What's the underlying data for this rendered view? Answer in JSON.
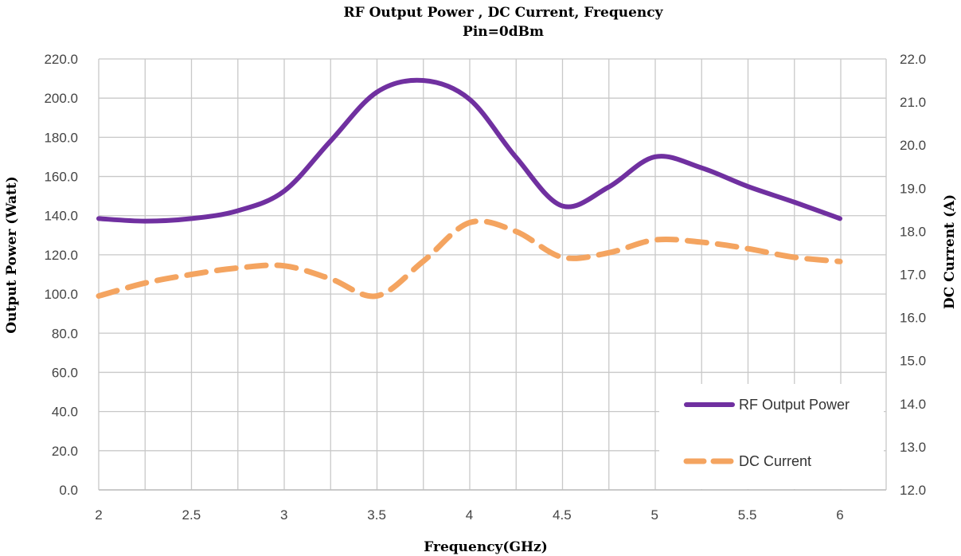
{
  "chart_data": {
    "type": "line",
    "title": "RF Output Power , DC Current,  Frequency",
    "subtitle": "Pin=0dBm",
    "xlabel": "Frequency(GHz)",
    "ylabel_left": "Output Power (Watt)",
    "ylabel_right": "DC Current  (A)",
    "xlim": [
      2,
      6
    ],
    "ylim_left": [
      0,
      220
    ],
    "ylim_right": [
      12,
      22
    ],
    "x_ticks": [
      "2",
      "2.5",
      "3",
      "3.5",
      "4",
      "4.5",
      "5",
      "5.5",
      "6"
    ],
    "y_left_ticks": [
      "0.0",
      "20.0",
      "40.0",
      "60.0",
      "80.0",
      "100.0",
      "120.0",
      "140.0",
      "160.0",
      "180.0",
      "200.0",
      "220.0"
    ],
    "y_right_ticks": [
      "12.0",
      "13.0",
      "14.0",
      "15.0",
      "16.0",
      "17.0",
      "18.0",
      "19.0",
      "20.0",
      "21.0",
      "22.0"
    ],
    "grid": true,
    "legend_position": "bottom-right",
    "series": [
      {
        "name": "RF Output Power",
        "axis": "left",
        "color": "#7030A0",
        "style": "solid",
        "x": [
          2,
          2.25,
          2.5,
          2.75,
          3,
          3.25,
          3.5,
          3.75,
          4,
          4.25,
          4.5,
          4.75,
          5,
          5.25,
          5.5,
          5.75,
          6
        ],
        "values": [
          138.5,
          137.2,
          138.5,
          142.5,
          152.5,
          178,
          203,
          209,
          199.5,
          170,
          145,
          154.5,
          170,
          164.5,
          155,
          147,
          138.5
        ]
      },
      {
        "name": "DC Current",
        "axis": "right",
        "color": "#F4A460",
        "style": "dashed",
        "x": [
          2,
          2.25,
          2.5,
          2.75,
          3,
          3.25,
          3.5,
          3.75,
          4,
          4.25,
          4.5,
          4.75,
          5,
          5.25,
          5.5,
          5.75,
          6
        ],
        "values": [
          16.5,
          16.8,
          17.0,
          17.15,
          17.2,
          16.9,
          16.5,
          17.3,
          18.2,
          18.0,
          17.4,
          17.5,
          17.8,
          17.75,
          17.6,
          17.4,
          17.3
        ]
      }
    ]
  }
}
